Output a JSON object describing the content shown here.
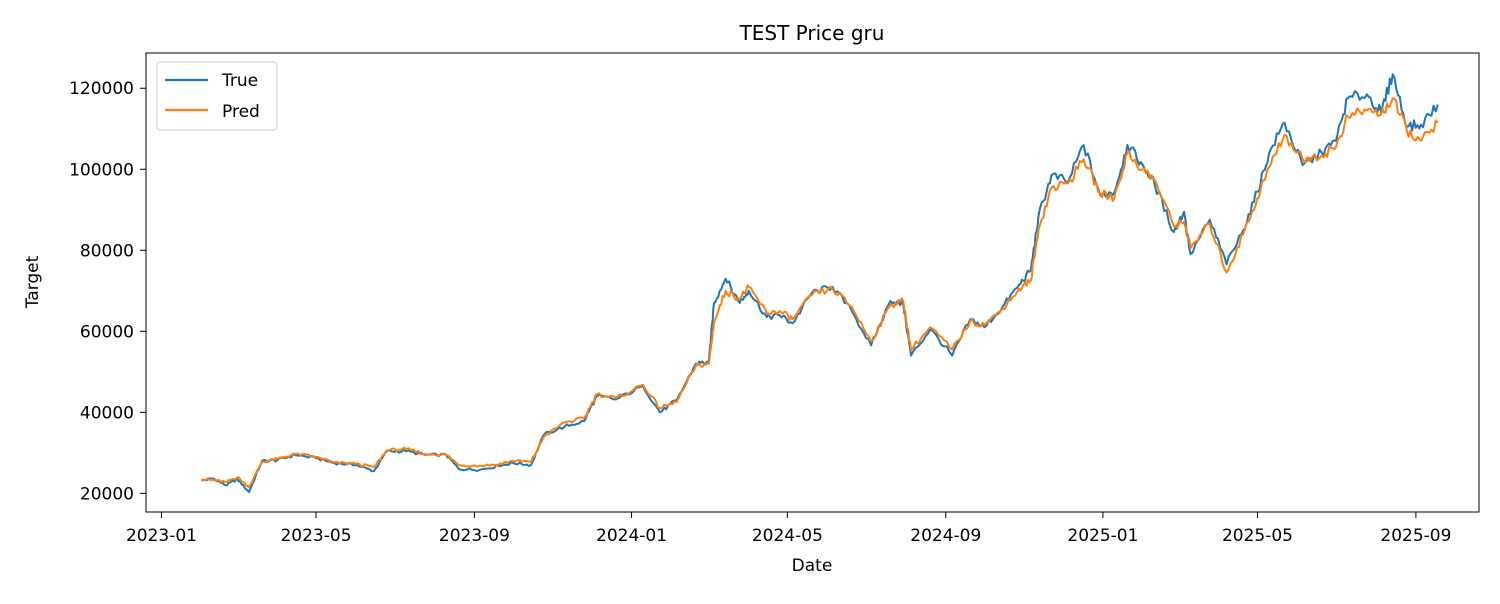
{
  "chart_data": {
    "type": "line",
    "title": "TEST Price gru",
    "xlabel": "Date",
    "ylabel": "Target",
    "x_tick_labels": [
      "2023-01",
      "2023-05",
      "2023-09",
      "2024-01",
      "2024-05",
      "2024-09",
      "2025-01",
      "2025-05",
      "2025-09"
    ],
    "y_tick_labels": [
      "20000",
      "40000",
      "60000",
      "80000",
      "100000",
      "120000"
    ],
    "xlim": [
      "2022-12-20",
      "2025-10-20"
    ],
    "ylim": [
      15400,
      128700
    ],
    "grid": false,
    "legend_position": "top-left",
    "series": [
      {
        "name": "True",
        "color": "#1f77b4",
        "points": [
          [
            "2023-02-01",
            23100
          ],
          [
            "2023-02-10",
            23700
          ],
          [
            "2023-02-20",
            22000
          ],
          [
            "2023-03-01",
            23500
          ],
          [
            "2023-03-10",
            20300
          ],
          [
            "2023-03-20",
            28000
          ],
          [
            "2023-04-01",
            28200
          ],
          [
            "2023-04-15",
            29500
          ],
          [
            "2023-05-01",
            28700
          ],
          [
            "2023-05-15",
            27500
          ],
          [
            "2023-06-01",
            27000
          ],
          [
            "2023-06-15",
            25500
          ],
          [
            "2023-06-25",
            30400
          ],
          [
            "2023-07-10",
            30400
          ],
          [
            "2023-07-25",
            29500
          ],
          [
            "2023-08-10",
            29500
          ],
          [
            "2023-08-20",
            26000
          ],
          [
            "2023-09-05",
            25800
          ],
          [
            "2023-09-20",
            26800
          ],
          [
            "2023-10-01",
            27500
          ],
          [
            "2023-10-15",
            27000
          ],
          [
            "2023-10-25",
            34500
          ],
          [
            "2023-11-10",
            36500
          ],
          [
            "2023-11-25",
            37800
          ],
          [
            "2023-12-05",
            44000
          ],
          [
            "2023-12-20",
            43200
          ],
          [
            "2024-01-10",
            46500
          ],
          [
            "2024-01-23",
            40000
          ],
          [
            "2024-02-05",
            43000
          ],
          [
            "2024-02-20",
            52000
          ],
          [
            "2024-03-01",
            52500
          ],
          [
            "2024-03-05",
            67000
          ],
          [
            "2024-03-14",
            73000
          ],
          [
            "2024-03-25",
            67000
          ],
          [
            "2024-04-01",
            70000
          ],
          [
            "2024-04-15",
            63500
          ],
          [
            "2024-04-25",
            64000
          ],
          [
            "2024-05-05",
            62000
          ],
          [
            "2024-05-20",
            69500
          ],
          [
            "2024-06-05",
            71000
          ],
          [
            "2024-06-20",
            65000
          ],
          [
            "2024-07-05",
            56500
          ],
          [
            "2024-07-20",
            67500
          ],
          [
            "2024-07-30",
            66500
          ],
          [
            "2024-08-05",
            54000
          ],
          [
            "2024-08-20",
            60500
          ],
          [
            "2024-09-06",
            54000
          ],
          [
            "2024-09-20",
            63000
          ],
          [
            "2024-10-01",
            61000
          ],
          [
            "2024-10-15",
            66000
          ],
          [
            "2024-10-28",
            71500
          ],
          [
            "2024-11-06",
            75000
          ],
          [
            "2024-11-12",
            88500
          ],
          [
            "2024-11-22",
            98500
          ],
          [
            "2024-12-05",
            97000
          ],
          [
            "2024-12-17",
            106000
          ],
          [
            "2024-12-30",
            93500
          ],
          [
            "2025-01-10",
            94500
          ],
          [
            "2025-01-20",
            106000
          ],
          [
            "2025-02-01",
            101000
          ],
          [
            "2025-02-10",
            96500
          ],
          [
            "2025-02-25",
            84500
          ],
          [
            "2025-03-05",
            89500
          ],
          [
            "2025-03-10",
            79000
          ],
          [
            "2025-03-25",
            87500
          ],
          [
            "2025-04-07",
            76500
          ],
          [
            "2025-04-20",
            85000
          ],
          [
            "2025-05-01",
            94500
          ],
          [
            "2025-05-10",
            104000
          ],
          [
            "2025-05-22",
            111500
          ],
          [
            "2025-06-05",
            101000
          ],
          [
            "2025-06-20",
            104000
          ],
          [
            "2025-07-01",
            107000
          ],
          [
            "2025-07-10",
            117500
          ],
          [
            "2025-07-25",
            118500
          ],
          [
            "2025-08-05",
            114000
          ],
          [
            "2025-08-14",
            123500
          ],
          [
            "2025-08-25",
            110500
          ],
          [
            "2025-09-05",
            111000
          ],
          [
            "2025-09-18",
            116000
          ]
        ]
      },
      {
        "name": "Pred",
        "color": "#ff7f0e",
        "points": [
          [
            "2023-02-01",
            23500
          ],
          [
            "2023-02-10",
            23300
          ],
          [
            "2023-02-20",
            22800
          ],
          [
            "2023-03-01",
            24000
          ],
          [
            "2023-03-10",
            21500
          ],
          [
            "2023-03-20",
            27800
          ],
          [
            "2023-04-01",
            28500
          ],
          [
            "2023-04-15",
            29800
          ],
          [
            "2023-05-01",
            29000
          ],
          [
            "2023-05-15",
            27600
          ],
          [
            "2023-06-01",
            27300
          ],
          [
            "2023-06-15",
            26500
          ],
          [
            "2023-06-25",
            30600
          ],
          [
            "2023-07-10",
            31000
          ],
          [
            "2023-07-25",
            29700
          ],
          [
            "2023-08-10",
            29600
          ],
          [
            "2023-08-20",
            27000
          ],
          [
            "2023-09-05",
            26800
          ],
          [
            "2023-09-20",
            27200
          ],
          [
            "2023-10-01",
            28000
          ],
          [
            "2023-10-15",
            27800
          ],
          [
            "2023-10-25",
            34000
          ],
          [
            "2023-11-10",
            37500
          ],
          [
            "2023-11-25",
            38500
          ],
          [
            "2023-12-05",
            44500
          ],
          [
            "2023-12-20",
            43500
          ],
          [
            "2024-01-10",
            46800
          ],
          [
            "2024-01-23",
            41000
          ],
          [
            "2024-02-05",
            42500
          ],
          [
            "2024-02-20",
            51500
          ],
          [
            "2024-03-01",
            52000
          ],
          [
            "2024-03-05",
            62000
          ],
          [
            "2024-03-14",
            70000
          ],
          [
            "2024-03-25",
            68000
          ],
          [
            "2024-04-01",
            71000
          ],
          [
            "2024-04-15",
            64500
          ],
          [
            "2024-04-25",
            65000
          ],
          [
            "2024-05-05",
            63000
          ],
          [
            "2024-05-20",
            69000
          ],
          [
            "2024-06-05",
            70500
          ],
          [
            "2024-06-20",
            66000
          ],
          [
            "2024-07-05",
            57500
          ],
          [
            "2024-07-20",
            66500
          ],
          [
            "2024-07-30",
            67500
          ],
          [
            "2024-08-05",
            55500
          ],
          [
            "2024-08-20",
            61000
          ],
          [
            "2024-09-06",
            55500
          ],
          [
            "2024-09-20",
            62500
          ],
          [
            "2024-10-01",
            61500
          ],
          [
            "2024-10-15",
            65500
          ],
          [
            "2024-10-28",
            70500
          ],
          [
            "2024-11-06",
            72500
          ],
          [
            "2024-11-12",
            85000
          ],
          [
            "2024-11-22",
            95500
          ],
          [
            "2024-12-05",
            96500
          ],
          [
            "2024-12-17",
            102500
          ],
          [
            "2024-12-30",
            94000
          ],
          [
            "2025-01-10",
            93000
          ],
          [
            "2025-01-20",
            104000
          ],
          [
            "2025-02-01",
            100000
          ],
          [
            "2025-02-10",
            97500
          ],
          [
            "2025-02-25",
            86000
          ],
          [
            "2025-03-05",
            87000
          ],
          [
            "2025-03-10",
            80500
          ],
          [
            "2025-03-25",
            86500
          ],
          [
            "2025-04-07",
            74500
          ],
          [
            "2025-04-20",
            84000
          ],
          [
            "2025-05-01",
            93000
          ],
          [
            "2025-05-10",
            100500
          ],
          [
            "2025-05-22",
            108500
          ],
          [
            "2025-06-05",
            102500
          ],
          [
            "2025-06-20",
            103500
          ],
          [
            "2025-07-01",
            105500
          ],
          [
            "2025-07-10",
            113000
          ],
          [
            "2025-07-25",
            114500
          ],
          [
            "2025-08-05",
            113500
          ],
          [
            "2025-08-14",
            117500
          ],
          [
            "2025-08-25",
            109500
          ],
          [
            "2025-09-05",
            107000
          ],
          [
            "2025-09-18",
            111500
          ]
        ]
      }
    ]
  }
}
